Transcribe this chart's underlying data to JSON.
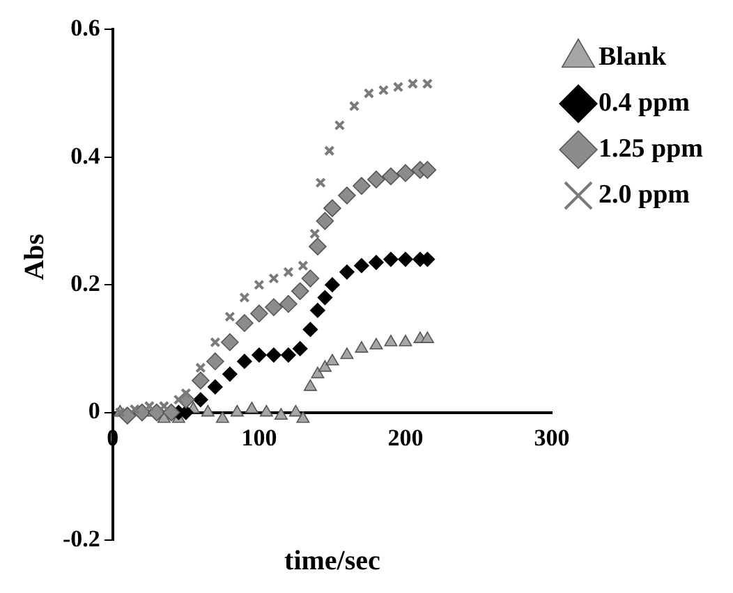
{
  "chart_data": {
    "type": "scatter",
    "xlabel": "time/sec",
    "ylabel": "Abs",
    "xlim": [
      0,
      300
    ],
    "xticks": [
      0,
      100,
      200,
      300
    ],
    "ylim": [
      -0.2,
      0.6
    ],
    "yticks": [
      -0.2,
      0,
      0.2,
      0.4,
      0.6
    ],
    "grid": false,
    "legend": "top right",
    "series": [
      {
        "name": "Blank",
        "color": "#a6a6a6",
        "marker": "triangle",
        "x": [
          5,
          15,
          25,
          35,
          45,
          55,
          65,
          75,
          85,
          95,
          105,
          115,
          125,
          130,
          135,
          140,
          145,
          150,
          160,
          170,
          180,
          190,
          200,
          210,
          215
        ],
        "values": [
          0,
          null,
          0,
          -0.01,
          -0.01,
          0.005,
          0,
          -0.01,
          0,
          0.005,
          0,
          -0.005,
          0,
          -0.01,
          0.04,
          0.06,
          0.07,
          0.08,
          0.09,
          0.1,
          0.105,
          0.11,
          0.11,
          0.115,
          0.115
        ]
      },
      {
        "name": "0.4 ppm",
        "color": "#000000",
        "marker": "diamond",
        "x": [
          45,
          50,
          60,
          70,
          80,
          90,
          100,
          110,
          120,
          128,
          135,
          140,
          145,
          150,
          160,
          170,
          180,
          190,
          200,
          210,
          215
        ],
        "values": [
          0,
          0,
          0.02,
          0.04,
          0.06,
          0.08,
          0.09,
          0.09,
          0.09,
          0.1,
          0.13,
          0.16,
          0.18,
          0.2,
          0.22,
          0.23,
          0.235,
          0.24,
          0.24,
          0.24,
          0.24
        ]
      },
      {
        "name": "1.25 ppm",
        "color": "#8c8c8c",
        "marker": "diamond",
        "x": [
          10,
          20,
          30,
          40,
          50,
          60,
          70,
          80,
          90,
          100,
          110,
          120,
          128,
          135,
          140,
          145,
          150,
          160,
          170,
          180,
          190,
          200,
          210,
          215
        ],
        "values": [
          -0.005,
          0,
          0,
          0,
          0.02,
          0.05,
          0.08,
          0.11,
          0.14,
          0.155,
          0.165,
          0.17,
          0.19,
          0.21,
          0.26,
          0.3,
          0.32,
          0.34,
          0.355,
          0.365,
          0.37,
          0.375,
          0.38,
          0.38
        ]
      },
      {
        "name": "2.0 ppm",
        "color": "#7a7a7a",
        "marker": "cross",
        "x": [
          5,
          15,
          25,
          35,
          45,
          50,
          60,
          70,
          80,
          90,
          100,
          110,
          120,
          130,
          138,
          142,
          148,
          155,
          165,
          175,
          185,
          195,
          205,
          215
        ],
        "values": [
          0,
          0.005,
          0.01,
          0.01,
          0.02,
          0.03,
          0.07,
          0.11,
          0.15,
          0.18,
          0.2,
          0.21,
          0.22,
          0.23,
          0.28,
          0.36,
          0.41,
          0.45,
          0.48,
          0.5,
          0.505,
          0.51,
          0.515,
          0.515
        ]
      }
    ]
  }
}
